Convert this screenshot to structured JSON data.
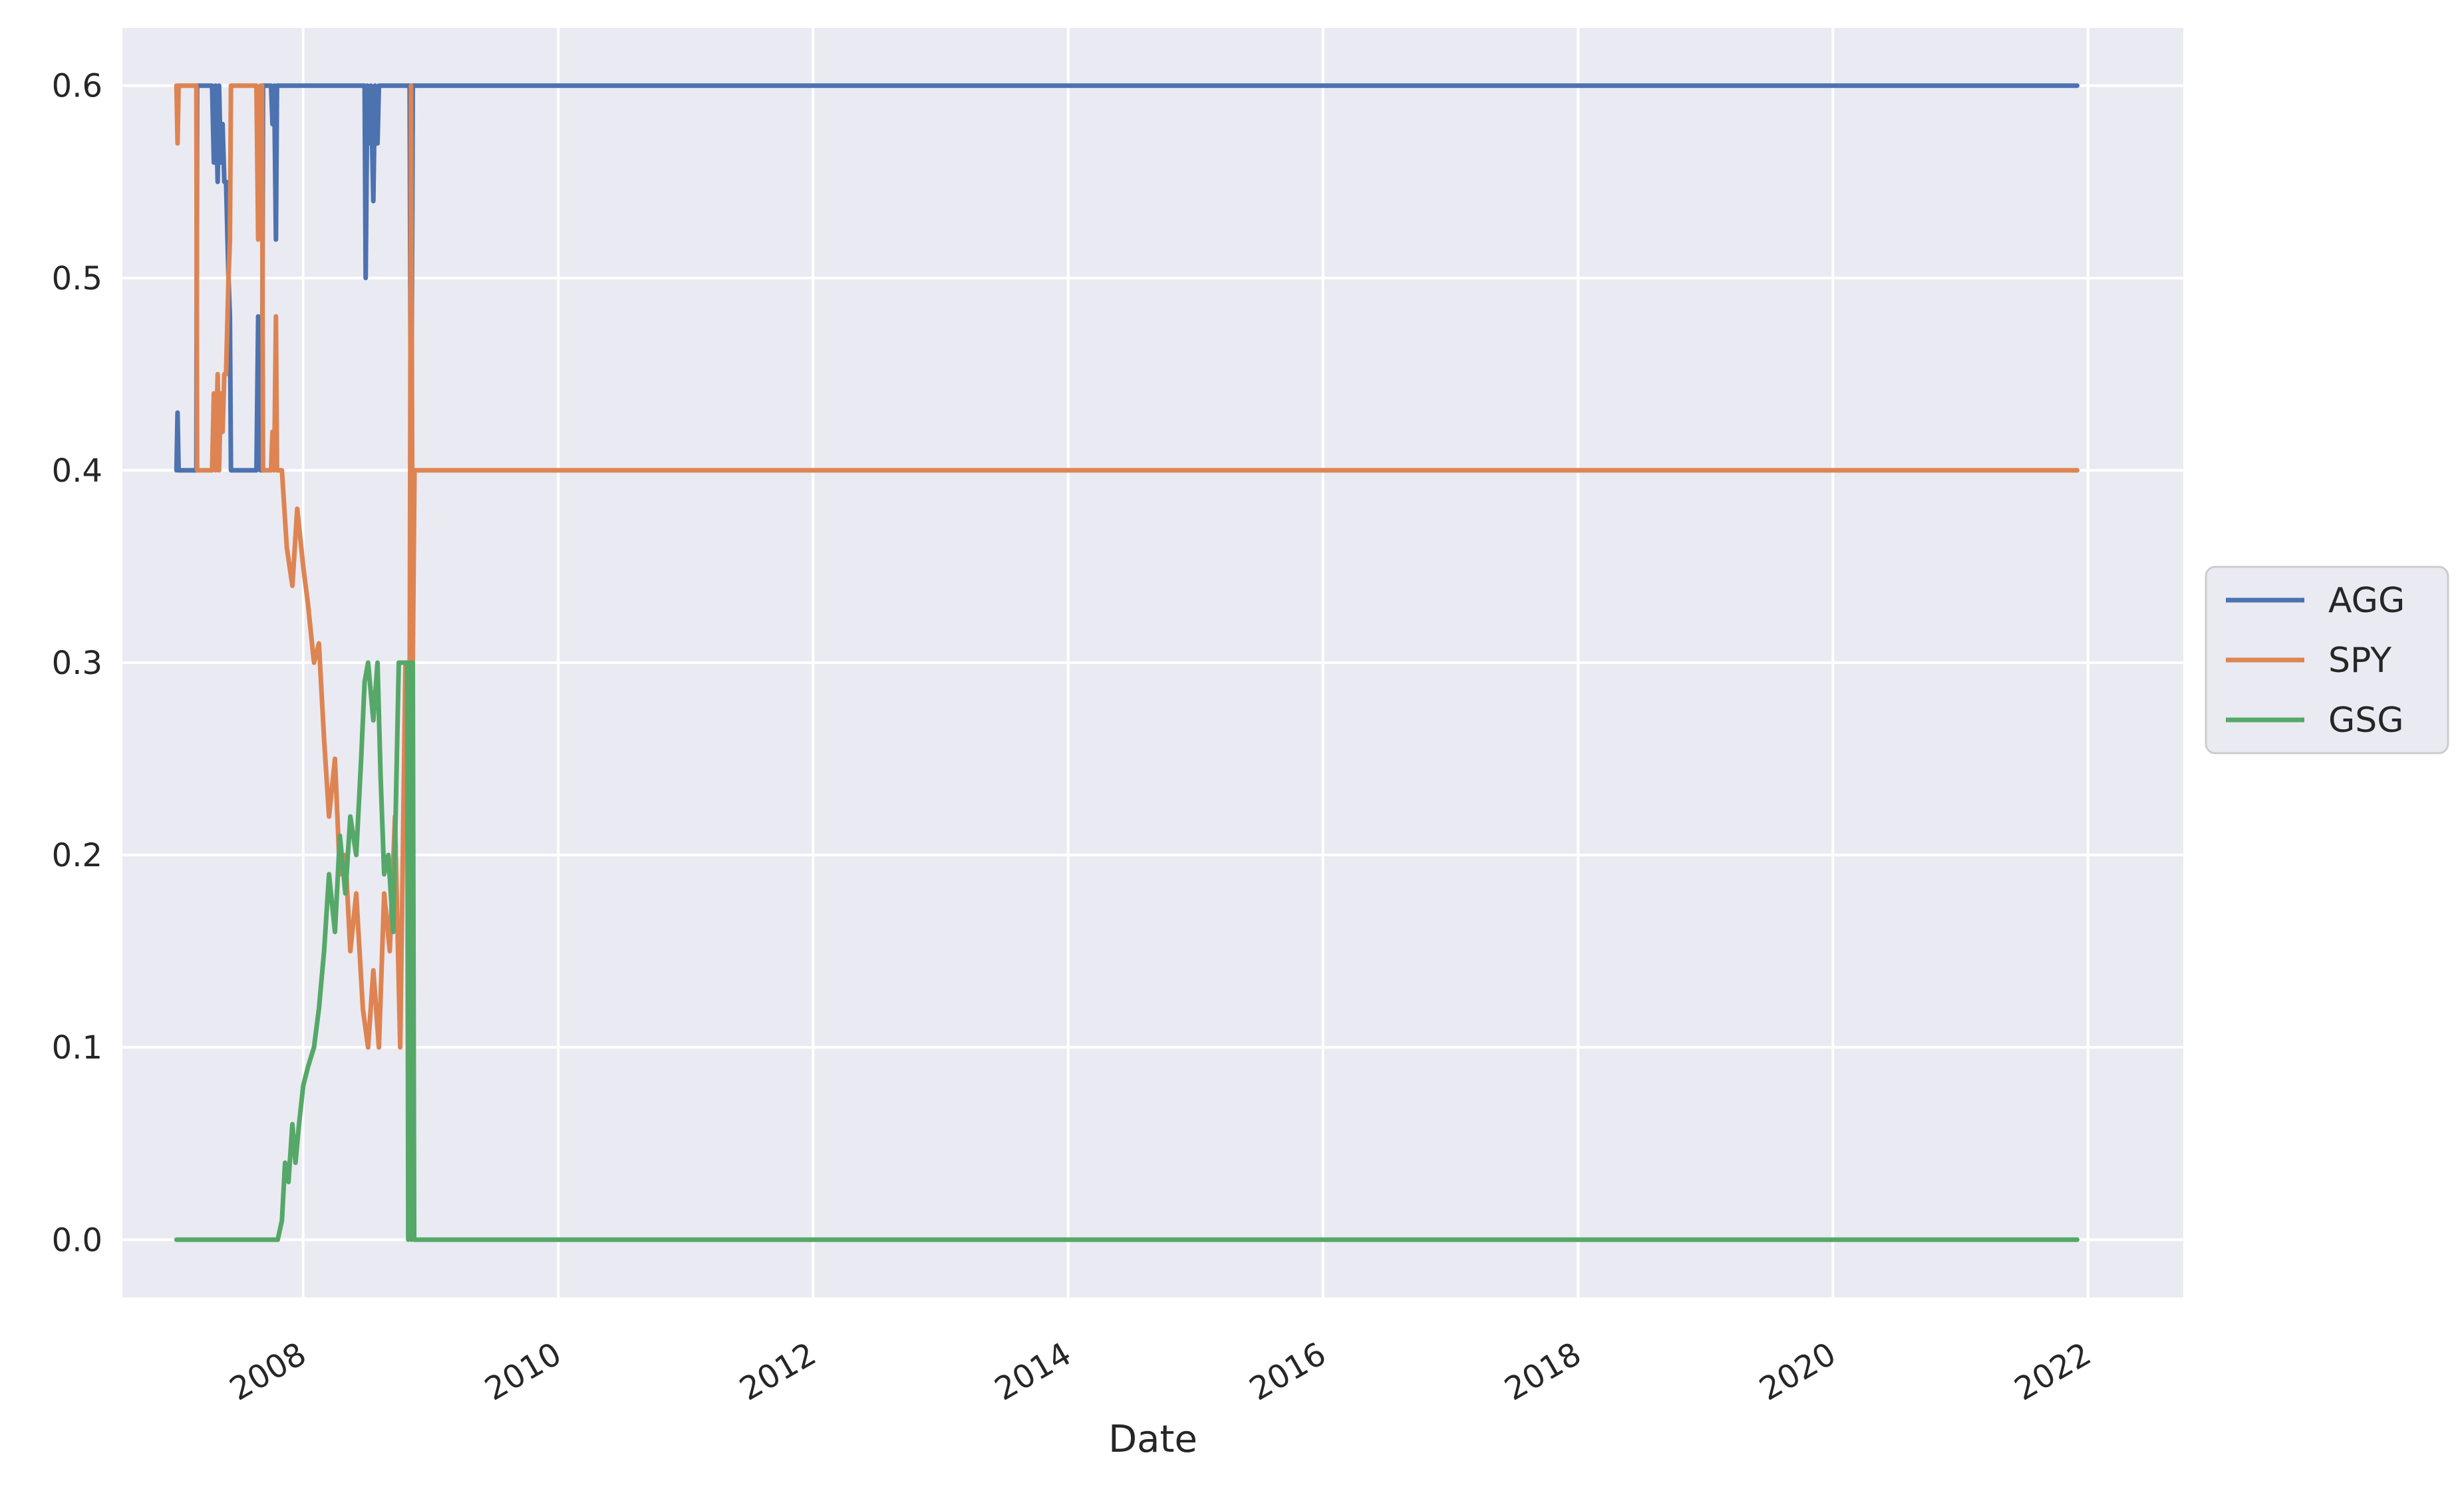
{
  "chart_data": {
    "type": "line",
    "title": "",
    "xlabel": "Date",
    "ylabel": "",
    "xlim": [
      "2006-08-01",
      "2022-10-01"
    ],
    "ylim": [
      -0.03,
      0.63
    ],
    "x_ticks": [
      {
        "date": "2008-01-01",
        "label": "2008"
      },
      {
        "date": "2010-01-01",
        "label": "2010"
      },
      {
        "date": "2012-01-01",
        "label": "2012"
      },
      {
        "date": "2014-01-01",
        "label": "2014"
      },
      {
        "date": "2016-01-01",
        "label": "2016"
      },
      {
        "date": "2018-01-01",
        "label": "2018"
      },
      {
        "date": "2020-01-01",
        "label": "2020"
      },
      {
        "date": "2022-01-01",
        "label": "2022"
      }
    ],
    "y_ticks": [
      {
        "value": 0.0,
        "label": "0.0"
      },
      {
        "value": 0.1,
        "label": "0.1"
      },
      {
        "value": 0.2,
        "label": "0.2"
      },
      {
        "value": 0.3,
        "label": "0.3"
      },
      {
        "value": 0.4,
        "label": "0.4"
      },
      {
        "value": 0.5,
        "label": "0.5"
      },
      {
        "value": 0.6,
        "label": "0.6"
      }
    ],
    "grid": true,
    "legend_position": "center-right outside",
    "series": [
      {
        "name": "AGG",
        "color": "#4c72b0",
        "points": [
          [
            "2007-01-03",
            0.4
          ],
          [
            "2007-01-06",
            0.43
          ],
          [
            "2007-01-09",
            0.4
          ],
          [
            "2007-03-01",
            0.4
          ],
          [
            "2007-03-03",
            0.6
          ],
          [
            "2007-04-15",
            0.6
          ],
          [
            "2007-04-20",
            0.56
          ],
          [
            "2007-04-25",
            0.6
          ],
          [
            "2007-05-01",
            0.55
          ],
          [
            "2007-05-05",
            0.6
          ],
          [
            "2007-05-10",
            0.56
          ],
          [
            "2007-05-15",
            0.58
          ],
          [
            "2007-05-20",
            0.55
          ],
          [
            "2007-05-25",
            0.55
          ],
          [
            "2007-06-01",
            0.5
          ],
          [
            "2007-06-05",
            0.48
          ],
          [
            "2007-06-08",
            0.4
          ],
          [
            "2007-08-20",
            0.4
          ],
          [
            "2007-08-25",
            0.48
          ],
          [
            "2007-09-01",
            0.4
          ],
          [
            "2007-09-05",
            0.4
          ],
          [
            "2007-09-08",
            0.6
          ],
          [
            "2007-10-01",
            0.6
          ],
          [
            "2007-10-05",
            0.58
          ],
          [
            "2007-10-10",
            0.6
          ],
          [
            "2007-10-15",
            0.52
          ],
          [
            "2007-10-18",
            0.6
          ],
          [
            "2008-06-25",
            0.6
          ],
          [
            "2008-06-28",
            0.5
          ],
          [
            "2008-07-03",
            0.6
          ],
          [
            "2008-07-08",
            0.57
          ],
          [
            "2008-07-13",
            0.6
          ],
          [
            "2008-07-20",
            0.54
          ],
          [
            "2008-07-25",
            0.6
          ],
          [
            "2008-08-01",
            0.57
          ],
          [
            "2008-08-05",
            0.6
          ],
          [
            "2008-11-01",
            0.6
          ],
          [
            "2008-11-05",
            0.37
          ],
          [
            "2008-11-10",
            0.6
          ],
          [
            "2021-12-01",
            0.6
          ]
        ]
      },
      {
        "name": "SPY",
        "color": "#dd8452",
        "points": [
          [
            "2007-01-03",
            0.6
          ],
          [
            "2007-01-06",
            0.57
          ],
          [
            "2007-01-09",
            0.6
          ],
          [
            "2007-03-01",
            0.6
          ],
          [
            "2007-03-03",
            0.4
          ],
          [
            "2007-04-15",
            0.4
          ],
          [
            "2007-04-20",
            0.44
          ],
          [
            "2007-04-25",
            0.4
          ],
          [
            "2007-05-01",
            0.45
          ],
          [
            "2007-05-05",
            0.4
          ],
          [
            "2007-05-10",
            0.44
          ],
          [
            "2007-05-15",
            0.42
          ],
          [
            "2007-05-20",
            0.45
          ],
          [
            "2007-05-25",
            0.45
          ],
          [
            "2007-06-01",
            0.5
          ],
          [
            "2007-06-05",
            0.52
          ],
          [
            "2007-06-08",
            0.6
          ],
          [
            "2007-08-20",
            0.6
          ],
          [
            "2007-08-25",
            0.52
          ],
          [
            "2007-09-01",
            0.6
          ],
          [
            "2007-09-05",
            0.6
          ],
          [
            "2007-09-08",
            0.4
          ],
          [
            "2007-10-01",
            0.4
          ],
          [
            "2007-10-05",
            0.42
          ],
          [
            "2007-10-10",
            0.4
          ],
          [
            "2007-10-15",
            0.48
          ],
          [
            "2007-10-18",
            0.4
          ],
          [
            "2007-11-01",
            0.4
          ],
          [
            "2007-11-15",
            0.36
          ],
          [
            "2007-12-01",
            0.34
          ],
          [
            "2007-12-15",
            0.38
          ],
          [
            "2008-01-01",
            0.35
          ],
          [
            "2008-01-15",
            0.33
          ],
          [
            "2008-02-01",
            0.3
          ],
          [
            "2008-02-15",
            0.31
          ],
          [
            "2008-03-01",
            0.26
          ],
          [
            "2008-03-15",
            0.22
          ],
          [
            "2008-04-01",
            0.25
          ],
          [
            "2008-04-15",
            0.19
          ],
          [
            "2008-05-01",
            0.2
          ],
          [
            "2008-05-15",
            0.15
          ],
          [
            "2008-06-01",
            0.18
          ],
          [
            "2008-06-20",
            0.12
          ],
          [
            "2008-07-05",
            0.1
          ],
          [
            "2008-07-20",
            0.14
          ],
          [
            "2008-08-05",
            0.1
          ],
          [
            "2008-08-20",
            0.18
          ],
          [
            "2008-09-05",
            0.15
          ],
          [
            "2008-09-20",
            0.22
          ],
          [
            "2008-10-05",
            0.1
          ],
          [
            "2008-10-20",
            0.3
          ],
          [
            "2008-11-01",
            0.28
          ],
          [
            "2008-11-05",
            0.6
          ],
          [
            "2008-11-10",
            0.3
          ],
          [
            "2008-11-15",
            0.4
          ],
          [
            "2021-12-01",
            0.4
          ]
        ]
      },
      {
        "name": "GSG",
        "color": "#55a868",
        "points": [
          [
            "2007-01-03",
            0.0
          ],
          [
            "2007-10-20",
            0.0
          ],
          [
            "2007-11-01",
            0.01
          ],
          [
            "2007-11-10",
            0.04
          ],
          [
            "2007-11-20",
            0.03
          ],
          [
            "2007-12-01",
            0.06
          ],
          [
            "2007-12-10",
            0.04
          ],
          [
            "2007-12-20",
            0.06
          ],
          [
            "2008-01-01",
            0.08
          ],
          [
            "2008-01-15",
            0.09
          ],
          [
            "2008-02-01",
            0.1
          ],
          [
            "2008-02-15",
            0.12
          ],
          [
            "2008-03-01",
            0.15
          ],
          [
            "2008-03-15",
            0.19
          ],
          [
            "2008-04-01",
            0.16
          ],
          [
            "2008-04-15",
            0.21
          ],
          [
            "2008-05-01",
            0.18
          ],
          [
            "2008-05-15",
            0.22
          ],
          [
            "2008-06-01",
            0.2
          ],
          [
            "2008-06-15",
            0.25
          ],
          [
            "2008-06-25",
            0.29
          ],
          [
            "2008-07-05",
            0.3
          ],
          [
            "2008-07-20",
            0.27
          ],
          [
            "2008-08-01",
            0.3
          ],
          [
            "2008-08-10",
            0.24
          ],
          [
            "2008-08-20",
            0.19
          ],
          [
            "2008-09-01",
            0.2
          ],
          [
            "2008-09-15",
            0.16
          ],
          [
            "2008-10-01",
            0.3
          ],
          [
            "2008-10-25",
            0.3
          ],
          [
            "2008-10-28",
            0.0
          ],
          [
            "2008-11-02",
            0.3
          ],
          [
            "2008-11-06",
            0.0
          ],
          [
            "2008-11-10",
            0.3
          ],
          [
            "2008-11-14",
            0.0
          ],
          [
            "2021-12-01",
            0.0
          ]
        ]
      }
    ]
  }
}
